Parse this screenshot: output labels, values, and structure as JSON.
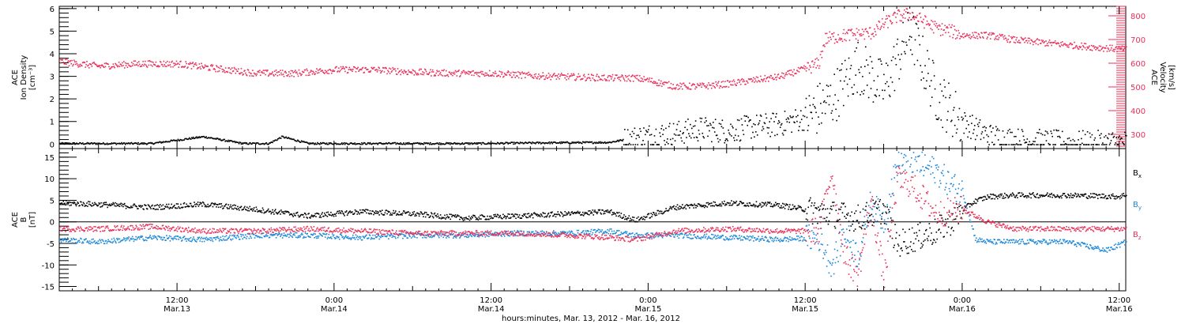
{
  "chart_data": [
    {
      "type": "scatter",
      "panel": "top",
      "ylabel": [
        "ACE",
        "Ion Density",
        "[cm⁻³]"
      ],
      "ylim": [
        -0.2,
        6.1
      ],
      "yticks": [
        0,
        1,
        2,
        3,
        4,
        5,
        6
      ],
      "y2label": [
        "ACE",
        "Velocity",
        "[km/s]"
      ],
      "y2lim": [
        240,
        840
      ],
      "y2ticks": [
        300,
        400,
        500,
        600,
        700,
        800
      ],
      "x_units": "hours since Mar. 13, 2012 00:00",
      "xlim": [
        3,
        84.5
      ],
      "series": [
        {
          "name": "Ion Density",
          "axis": "left",
          "color": "#000000",
          "x": [
            3,
            10,
            14,
            17,
            19,
            20,
            22,
            24,
            30,
            35,
            40,
            45,
            47,
            48,
            50,
            52,
            54,
            56,
            58,
            60,
            62,
            64,
            66,
            68,
            70,
            72,
            74,
            76,
            80,
            82,
            84.5
          ],
          "values": [
            0.05,
            0.05,
            0.35,
            0.05,
            0.05,
            0.35,
            0.05,
            0.05,
            0.05,
            0.05,
            0.08,
            0.1,
            0.3,
            0.4,
            0.5,
            0.7,
            0.6,
            0.8,
            0.9,
            1.2,
            2.0,
            3.5,
            2.5,
            5.0,
            2.2,
            1.0,
            0.4,
            0.2,
            0.08,
            0.08,
            0.1
          ]
        },
        {
          "name": "Velocity",
          "axis": "right",
          "color": "#e8305a",
          "x": [
            3,
            6,
            9,
            12,
            15,
            18,
            21,
            24,
            27,
            30,
            33,
            36,
            39,
            42,
            45,
            47,
            48,
            50,
            52,
            54,
            56,
            58,
            60,
            61,
            61.5,
            63,
            65,
            66,
            67,
            68,
            69,
            70,
            71,
            72,
            74,
            76,
            78,
            80,
            82,
            84.5
          ],
          "values": [
            610,
            590,
            600,
            600,
            580,
            560,
            560,
            575,
            575,
            565,
            560,
            560,
            550,
            545,
            540,
            540,
            530,
            505,
            505,
            515,
            530,
            545,
            580,
            600,
            705,
            720,
            730,
            770,
            800,
            810,
            780,
            750,
            740,
            720,
            720,
            700,
            690,
            680,
            670,
            660
          ]
        }
      ]
    },
    {
      "type": "scatter",
      "panel": "bottom",
      "ylabel": [
        "ACE",
        "B",
        "[nT]"
      ],
      "ylim": [
        -16,
        17
      ],
      "yticks": [
        -15,
        -10,
        -5,
        0,
        5,
        10,
        15
      ],
      "x_units": "hours since Mar. 13, 2012 00:00",
      "xlim": [
        3,
        84.5
      ],
      "legend_position": "right",
      "series": [
        {
          "name": "B",
          "subscript": "x",
          "color": "#000000",
          "x": [
            3,
            6,
            10,
            14,
            18,
            22,
            26,
            30,
            34,
            38,
            42,
            45,
            47,
            50,
            54,
            58,
            60,
            62,
            64,
            66,
            67,
            68,
            69,
            70,
            71,
            72,
            73,
            74,
            76,
            80,
            84,
            84.5
          ],
          "values": [
            4.5,
            4.2,
            3.5,
            4.2,
            3.0,
            1.5,
            2.5,
            2.0,
            1.0,
            1.5,
            2.0,
            2.5,
            0.5,
            3.5,
            4.5,
            4.0,
            3.0,
            2.0,
            1.0,
            3.0,
            -5.0,
            -4.0,
            -3.0,
            -2.0,
            0.0,
            3.0,
            5.0,
            6.0,
            6.3,
            6.3,
            6.0,
            6.5
          ]
        },
        {
          "name": "B",
          "subscript": "y",
          "color": "#1a86d9",
          "x": [
            3,
            6,
            10,
            14,
            18,
            22,
            26,
            30,
            34,
            38,
            42,
            45,
            47,
            50,
            54,
            58,
            61,
            62,
            63,
            64,
            65,
            66,
            67,
            68,
            69,
            70,
            71,
            72,
            73,
            74,
            76,
            80,
            83,
            84.5
          ],
          "values": [
            -4.0,
            -4.5,
            -3.5,
            -4.0,
            -3.0,
            -3.0,
            -3.5,
            -3.0,
            -3.0,
            -2.5,
            -2.5,
            -2.0,
            -3.0,
            -3.0,
            -3.5,
            -4.0,
            -3.5,
            -10.0,
            -2.0,
            -8.0,
            5.0,
            0.0,
            14.0,
            14.5,
            13.0,
            12.0,
            9.0,
            7.0,
            -4.0,
            -4.5,
            -4.5,
            -4.5,
            -6.5,
            -4.5
          ]
        },
        {
          "name": "B",
          "subscript": "z",
          "color": "#e8305a",
          "x": [
            3,
            6,
            10,
            14,
            18,
            22,
            26,
            30,
            34,
            38,
            42,
            45,
            47,
            50,
            54,
            58,
            61,
            62,
            63,
            64,
            65,
            66,
            67,
            68,
            70,
            72,
            74,
            76,
            80,
            84.5
          ],
          "values": [
            -1.5,
            -1.5,
            -1.0,
            -2.0,
            -2.0,
            -1.5,
            -2.0,
            -2.5,
            -2.5,
            -2.5,
            -3.0,
            -3.5,
            -4.0,
            -2.0,
            -1.5,
            -2.0,
            -2.0,
            12.0,
            -8.0,
            -12.0,
            5.0,
            -13.0,
            10.0,
            9.0,
            2.0,
            3.0,
            0.0,
            -1.5,
            -1.5,
            -1.5
          ]
        }
      ]
    }
  ],
  "xaxis": {
    "major_ticks": [
      {
        "x": 12,
        "time": "12:00",
        "date": "Mar.13"
      },
      {
        "x": 24,
        "time": "0:00",
        "date": "Mar.14"
      },
      {
        "x": 36,
        "time": "12:00",
        "date": "Mar.14"
      },
      {
        "x": 48,
        "time": "0:00",
        "date": "Mar.15"
      },
      {
        "x": 60,
        "time": "12:00",
        "date": "Mar.15"
      },
      {
        "x": 72,
        "time": "0:00",
        "date": "Mar.16"
      },
      {
        "x": 84,
        "time": "12:00",
        "date": "Mar.16"
      }
    ],
    "title": "hours:minutes, Mar. 13, 2012 - Mar. 16, 2012"
  }
}
